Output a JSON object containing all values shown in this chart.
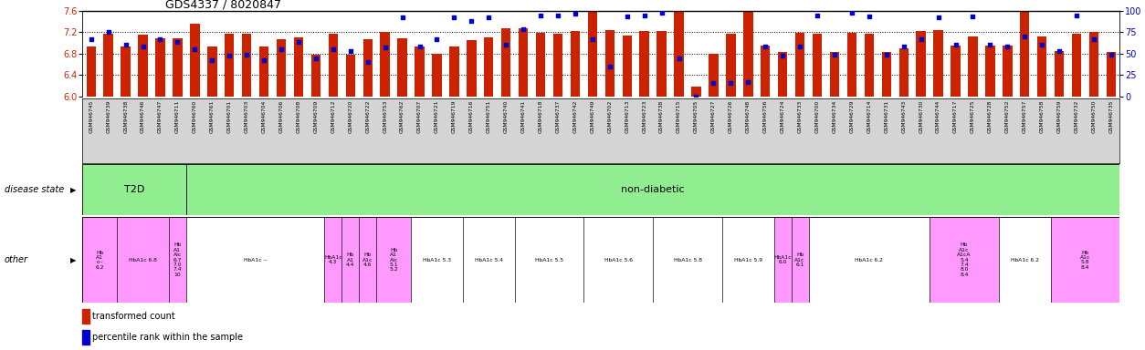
{
  "title": "GDS4337 / 8020847",
  "ylim_left": [
    6.0,
    7.6
  ],
  "ylim_right": [
    0,
    100
  ],
  "yticks_left": [
    6.0,
    6.4,
    6.8,
    7.2,
    7.6
  ],
  "yticks_right": [
    0,
    25,
    50,
    75,
    100
  ],
  "bar_color": "#cc2200",
  "dot_color": "#0000cc",
  "sample_ids": [
    "GSM946745",
    "GSM946739",
    "GSM946738",
    "GSM946746",
    "GSM946747",
    "GSM946711",
    "GSM946760",
    "GSM946761",
    "GSM946701",
    "GSM946703",
    "GSM946704",
    "GSM946706",
    "GSM946708",
    "GSM946709",
    "GSM946712",
    "GSM946720",
    "GSM946722",
    "GSM946753",
    "GSM946762",
    "GSM946707",
    "GSM946721",
    "GSM946719",
    "GSM946716",
    "GSM946751",
    "GSM946740",
    "GSM946741",
    "GSM946718",
    "GSM946737",
    "GSM946742",
    "GSM946749",
    "GSM946702",
    "GSM946713",
    "GSM946723",
    "GSM946738",
    "GSM946715",
    "GSM946705",
    "GSM946727",
    "GSM946726",
    "GSM946748",
    "GSM946756",
    "GSM946724",
    "GSM946733",
    "GSM946700",
    "GSM946734",
    "GSM946729",
    "GSM946714",
    "GSM946731",
    "GSM946743",
    "GSM946730",
    "GSM946744",
    "GSM946717",
    "GSM946725",
    "GSM946728",
    "GSM946752",
    "GSM946757",
    "GSM946758",
    "GSM946759",
    "GSM946732",
    "GSM946750",
    "GSM946735"
  ],
  "bar_heights": [
    6.93,
    7.16,
    6.93,
    7.15,
    7.09,
    7.09,
    7.35,
    6.93,
    7.17,
    7.16,
    6.93,
    7.07,
    7.1,
    6.77,
    7.16,
    6.78,
    7.07,
    7.2,
    7.08,
    6.93,
    6.8,
    6.93,
    7.05,
    7.1,
    7.27,
    7.27,
    7.18,
    7.16,
    7.22,
    7.57,
    7.23,
    7.13,
    7.22,
    7.21,
    7.57,
    6.18,
    6.8,
    7.17,
    7.58,
    6.95,
    6.83,
    7.19,
    7.17,
    6.83,
    7.19,
    7.17,
    6.83,
    6.89,
    7.22,
    7.24,
    6.94,
    7.11,
    6.94,
    6.94,
    7.57,
    7.11,
    6.84,
    7.16,
    7.2,
    6.83
  ],
  "dot_percentile": [
    67,
    75,
    60,
    58,
    67,
    63,
    55,
    42,
    47,
    48,
    42,
    55,
    63,
    44,
    55,
    53,
    40,
    57,
    92,
    58,
    67,
    92,
    88,
    92,
    60,
    78,
    94,
    94,
    96,
    67,
    35,
    93,
    94,
    97,
    44,
    0,
    15,
    15,
    17,
    58,
    47,
    58,
    94,
    48,
    97,
    93,
    48,
    58,
    67,
    92,
    60,
    93,
    60,
    58,
    70,
    60,
    53,
    94,
    67,
    48
  ],
  "t2d_count": 6,
  "other_groups": [
    {
      "label": "Hb\nA1\nc--\n6.2",
      "start": 0,
      "end": 2,
      "color": "#FF99FF"
    },
    {
      "label": "HbA1c 6.8",
      "start": 2,
      "end": 5,
      "color": "#FF99FF"
    },
    {
      "label": "Hb\nA1\nAic\n6.7\n7.0\n7.4\n10",
      "start": 5,
      "end": 6,
      "color": "#FF99FF"
    },
    {
      "label": "HbA1c --",
      "start": 6,
      "end": 14,
      "color": "#ffffff"
    },
    {
      "label": "HbA1c\n4.3",
      "start": 14,
      "end": 15,
      "color": "#FF99FF"
    },
    {
      "label": "Hb\nA1\n4.4",
      "start": 15,
      "end": 16,
      "color": "#FF99FF"
    },
    {
      "label": "Hb\nA1c\n4.6",
      "start": 16,
      "end": 17,
      "color": "#FF99FF"
    },
    {
      "label": "Hb\nA1\nAic\n5.1\n5.2",
      "start": 17,
      "end": 19,
      "color": "#FF99FF"
    },
    {
      "label": "HbA1c 5.3",
      "start": 19,
      "end": 22,
      "color": "#ffffff"
    },
    {
      "label": "HbA1c 5.4",
      "start": 22,
      "end": 25,
      "color": "#ffffff"
    },
    {
      "label": "HbA1c 5.5",
      "start": 25,
      "end": 29,
      "color": "#ffffff"
    },
    {
      "label": "HbA1c 5.6",
      "start": 29,
      "end": 33,
      "color": "#ffffff"
    },
    {
      "label": "HbA1c 5.8",
      "start": 33,
      "end": 37,
      "color": "#ffffff"
    },
    {
      "label": "HbA1c 5.9",
      "start": 37,
      "end": 40,
      "color": "#ffffff"
    },
    {
      "label": "HbA1c\n6.0",
      "start": 40,
      "end": 41,
      "color": "#FF99FF"
    },
    {
      "label": "Hb\nA1c\n6.1",
      "start": 41,
      "end": 42,
      "color": "#FF99FF"
    },
    {
      "label": "HbA1c 6.2",
      "start": 42,
      "end": 49,
      "color": "#ffffff"
    },
    {
      "label": "Hb\nA1c\nA1cA\n5.4\n7.4\n8.0\n8.4",
      "start": 49,
      "end": 53,
      "color": "#FF99FF"
    },
    {
      "label": "HbA1c 6.2",
      "start": 53,
      "end": 56,
      "color": "#ffffff"
    },
    {
      "label": "Hb\nA1c\n5.8\n8.4",
      "start": 56,
      "end": 60,
      "color": "#FF99FF"
    }
  ],
  "background_color": "#ffffff",
  "axis_label_color_left": "#cc2200",
  "axis_label_color_right": "#0000cc",
  "xlabels_bg": "#d4d4d4",
  "disease_green": "#90EE90"
}
